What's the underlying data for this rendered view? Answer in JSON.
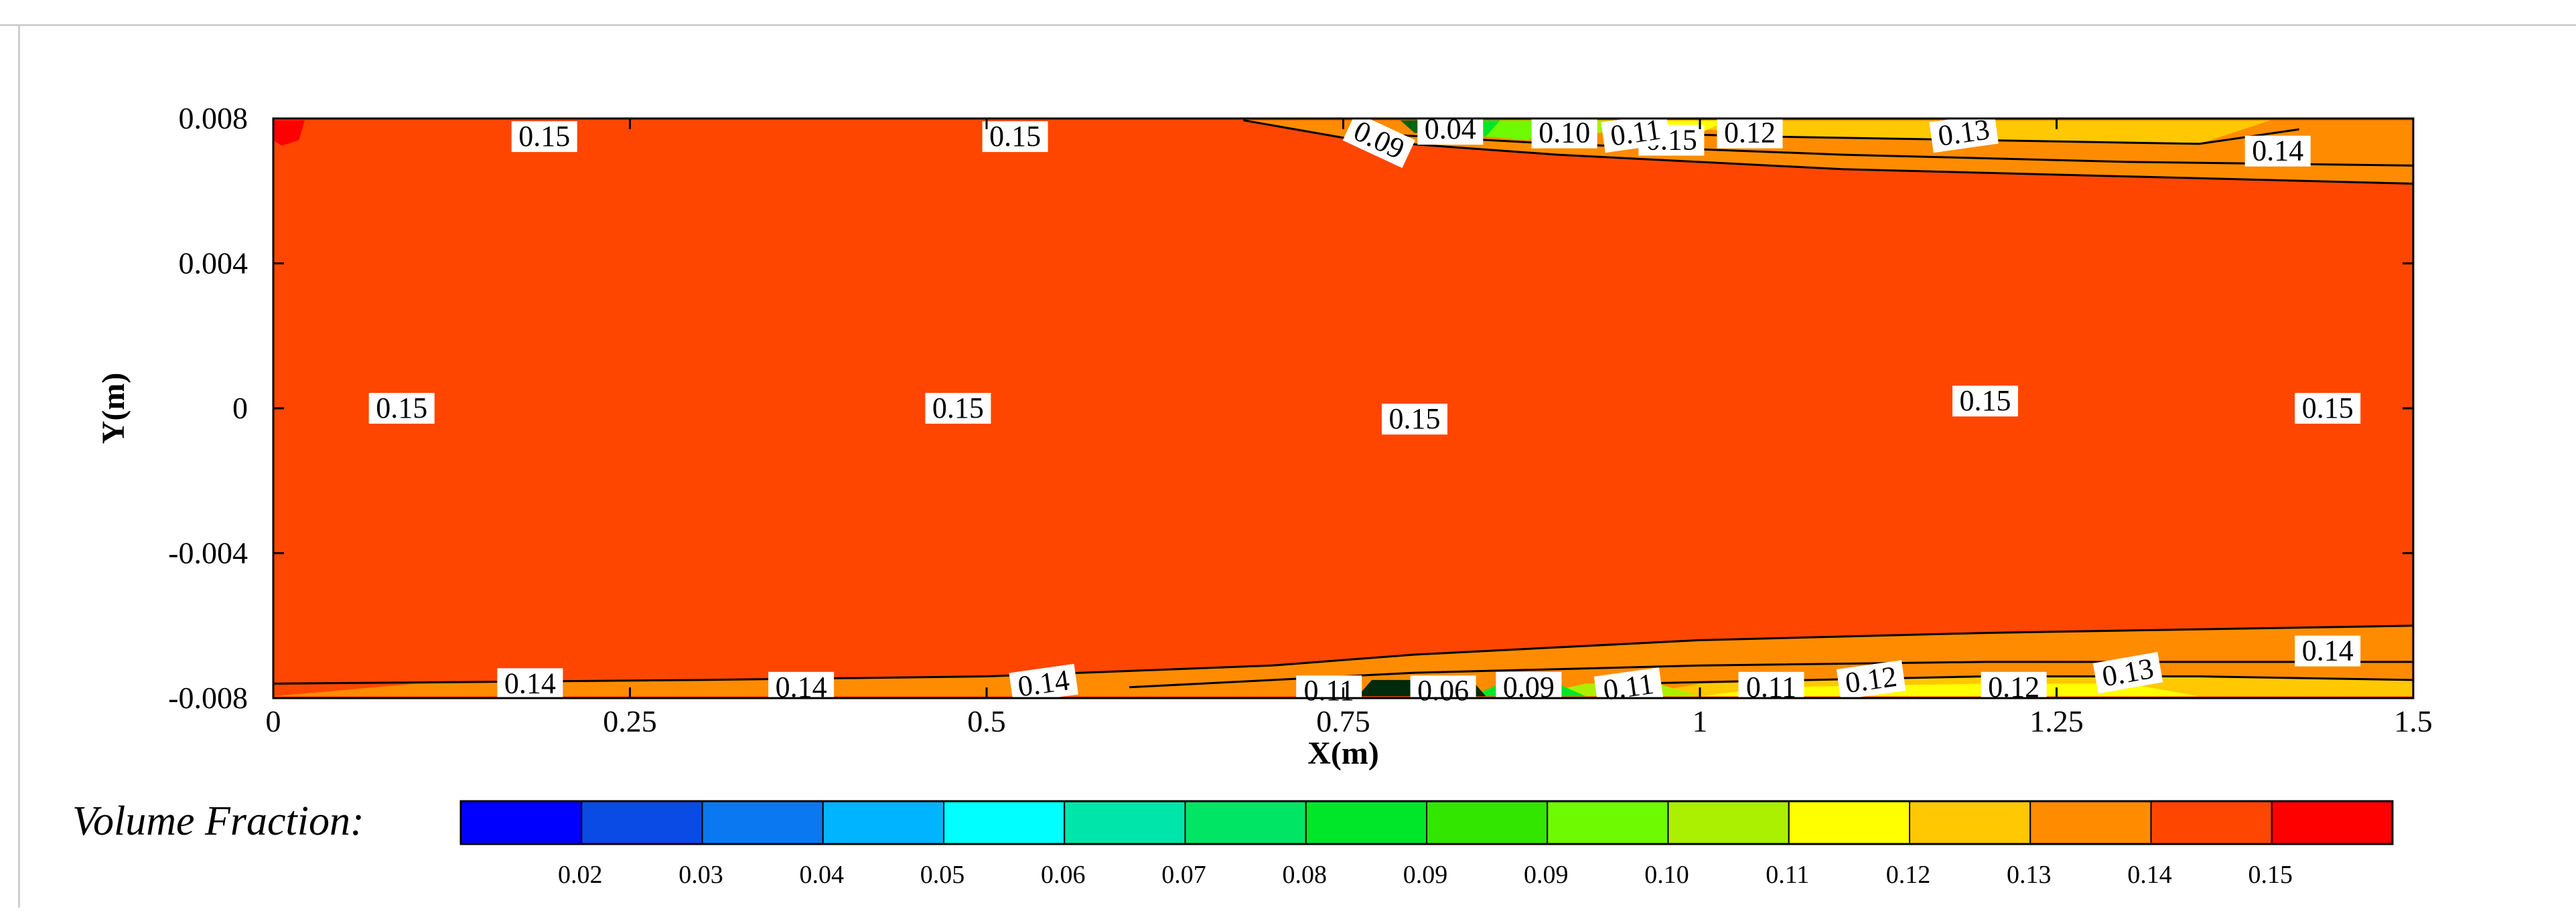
{
  "chart_data": {
    "type": "heatmap",
    "xlabel": "X(m)",
    "ylabel": "Y(m)",
    "xlim": [
      0,
      1.5
    ],
    "ylim": [
      -0.008,
      0.008
    ],
    "x_ticks": [
      {
        "value": 0,
        "label": "0"
      },
      {
        "value": 0.25,
        "label": "0.25"
      },
      {
        "value": 0.5,
        "label": "0.5"
      },
      {
        "value": 0.75,
        "label": "0.75"
      },
      {
        "value": 1,
        "label": "1"
      },
      {
        "value": 1.25,
        "label": "1.25"
      },
      {
        "value": 1.5,
        "label": "1.5"
      }
    ],
    "y_ticks": [
      {
        "value": 0.008,
        "label": "0.008"
      },
      {
        "value": 0.004,
        "label": "0.004"
      },
      {
        "value": 0,
        "label": "0"
      },
      {
        "value": -0.004,
        "label": "-0.004"
      },
      {
        "value": -0.008,
        "label": "-0.008"
      }
    ],
    "colorbar": {
      "title": "Volume Fraction:",
      "colors": [
        "#0000ff",
        "#0a4be6",
        "#0a78f0",
        "#00b4ff",
        "#00ffff",
        "#00e6aa",
        "#00e664",
        "#00e628",
        "#32e600",
        "#6efa00",
        "#aaf000",
        "#ffff00",
        "#ffc800",
        "#ff8c00",
        "#ff4600",
        "#ff0000"
      ],
      "labels": [
        "0.02",
        "0.03",
        "0.04",
        "0.05",
        "0.06",
        "0.07",
        "0.08",
        "0.09",
        "0.09",
        "0.10",
        "0.11",
        "0.12",
        "0.13",
        "0.14",
        "0.15"
      ]
    },
    "regions": [
      {
        "fill": "#ff4600",
        "value": 0.15,
        "polygon": [
          [
            0,
            -0.008
          ],
          [
            1.5,
            -0.008
          ],
          [
            1.5,
            0.008
          ],
          [
            0,
            0.008
          ]
        ]
      },
      {
        "fill": "#ff8c00",
        "value": 0.14,
        "polygon": [
          [
            0.68,
            0.00795
          ],
          [
            0.76,
            0.0074
          ],
          [
            0.9,
            0.007
          ],
          [
            1.1,
            0.0066
          ],
          [
            1.3,
            0.0064
          ],
          [
            1.5,
            0.0062
          ],
          [
            1.5,
            0.00795
          ]
        ]
      },
      {
        "fill": "#ffc800",
        "value": 0.13,
        "polygon": [
          [
            0.95,
            0.00795
          ],
          [
            1.05,
            0.0075
          ],
          [
            1.2,
            0.0074
          ],
          [
            1.35,
            0.0073
          ],
          [
            1.4,
            0.00795
          ]
        ]
      },
      {
        "fill": "#ffff00",
        "value": 0.12,
        "polygon": [
          [
            0.9,
            0.00795
          ],
          [
            0.95,
            0.0076
          ],
          [
            1.0,
            0.0076
          ],
          [
            1.02,
            0.00795
          ]
        ]
      },
      {
        "fill": "#aaf000",
        "value": 0.11,
        "polygon": [
          [
            0.86,
            0.00795
          ],
          [
            0.9,
            0.0075
          ],
          [
            0.93,
            0.0076
          ],
          [
            0.95,
            0.00795
          ]
        ]
      },
      {
        "fill": "#6efa00",
        "value": 0.1,
        "polygon": [
          [
            0.84,
            0.00795
          ],
          [
            0.85,
            0.0075
          ],
          [
            0.88,
            0.0074
          ],
          [
            0.9,
            0.00795
          ]
        ]
      },
      {
        "fill": "#00e628",
        "value": 0.09,
        "polygon": [
          [
            0.8,
            0.00795
          ],
          [
            0.82,
            0.0076
          ],
          [
            0.85,
            0.0075
          ],
          [
            0.86,
            0.00795
          ]
        ]
      },
      {
        "fill": "#006414",
        "value": 0.04,
        "polygon": [
          [
            0.79,
            0.00795
          ],
          [
            0.8,
            0.0076
          ],
          [
            0.83,
            0.0076
          ],
          [
            0.84,
            0.00795
          ]
        ]
      },
      {
        "fill": "#ff0000",
        "value": 0.15,
        "polygon": [
          [
            0,
            0.0074
          ],
          [
            0.006,
            0.00725
          ],
          [
            0.018,
            0.0074
          ],
          [
            0.022,
            0.00795
          ],
          [
            0,
            0.00795
          ]
        ]
      },
      {
        "fill": "#ff8c00",
        "value": 0.14,
        "polygon": [
          [
            0,
            -0.00795
          ],
          [
            0.1,
            -0.0076
          ],
          [
            0.3,
            -0.0075
          ],
          [
            0.5,
            -0.0074
          ],
          [
            0.7,
            -0.0071
          ],
          [
            0.8,
            -0.0068
          ],
          [
            1.0,
            -0.0064
          ],
          [
            1.2,
            -0.0062
          ],
          [
            1.5,
            -0.006
          ],
          [
            1.5,
            -0.00795
          ]
        ]
      },
      {
        "fill": "#ffc800",
        "value": 0.13,
        "polygon": [
          [
            0.95,
            -0.00795
          ],
          [
            1.0,
            -0.0076
          ],
          [
            1.2,
            -0.0074
          ],
          [
            1.35,
            -0.0074
          ],
          [
            1.5,
            -0.0075
          ],
          [
            1.5,
            -0.00795
          ]
        ]
      },
      {
        "fill": "#ffff00",
        "value": 0.12,
        "polygon": [
          [
            1.0,
            -0.00795
          ],
          [
            1.05,
            -0.0077
          ],
          [
            1.2,
            -0.0076
          ],
          [
            1.3,
            -0.0076
          ],
          [
            1.35,
            -0.00795
          ]
        ]
      },
      {
        "fill": "#aaf000",
        "value": 0.11,
        "polygon": [
          [
            0.88,
            -0.00795
          ],
          [
            0.92,
            -0.0076
          ],
          [
            0.97,
            -0.0076
          ],
          [
            1.0,
            -0.00795
          ]
        ]
      },
      {
        "fill": "#00e628",
        "value": 0.09,
        "polygon": [
          [
            0.84,
            -0.00795
          ],
          [
            0.86,
            -0.0076
          ],
          [
            0.9,
            -0.0076
          ],
          [
            0.92,
            -0.00795
          ]
        ]
      },
      {
        "fill": "#002a0a",
        "value": 0.06,
        "polygon": [
          [
            0.76,
            -0.00795
          ],
          [
            0.77,
            -0.0075
          ],
          [
            0.84,
            -0.0075
          ],
          [
            0.85,
            -0.00795
          ]
        ]
      }
    ],
    "contour_lines": [
      [
        [
          0.68,
          0.00795
        ],
        [
          0.76,
          0.0074
        ],
        [
          0.9,
          0.007
        ],
        [
          1.1,
          0.0066
        ],
        [
          1.3,
          0.0064
        ],
        [
          1.5,
          0.0062
        ]
      ],
      [
        [
          0.76,
          0.0076
        ],
        [
          0.9,
          0.0073
        ],
        [
          1.1,
          0.007
        ],
        [
          1.3,
          0.0068
        ],
        [
          1.5,
          0.0067
        ]
      ],
      [
        [
          0.95,
          0.0076
        ],
        [
          1.05,
          0.0075
        ],
        [
          1.2,
          0.0074
        ],
        [
          1.35,
          0.0073
        ],
        [
          1.42,
          0.0077
        ]
      ],
      [
        [
          0,
          -0.0076
        ],
        [
          0.3,
          -0.0075
        ],
        [
          0.5,
          -0.0074
        ],
        [
          0.7,
          -0.0071
        ],
        [
          0.8,
          -0.0068
        ],
        [
          1.0,
          -0.0064
        ],
        [
          1.2,
          -0.0062
        ],
        [
          1.5,
          -0.006
        ]
      ],
      [
        [
          0.6,
          -0.0077
        ],
        [
          0.8,
          -0.0073
        ],
        [
          1.0,
          -0.0071
        ],
        [
          1.2,
          -0.007
        ],
        [
          1.5,
          -0.007
        ]
      ],
      [
        [
          0.95,
          -0.0076
        ],
        [
          1.2,
          -0.0074
        ],
        [
          1.35,
          -0.0074
        ],
        [
          1.5,
          -0.0075
        ]
      ]
    ],
    "annotations": [
      {
        "x": 0.19,
        "y": 0.0075,
        "text": "0.15",
        "rotate": 0
      },
      {
        "x": 0.52,
        "y": 0.0075,
        "text": "0.15",
        "rotate": 0
      },
      {
        "x": 0.98,
        "y": 0.0074,
        "text": "0.15",
        "rotate": 0
      },
      {
        "x": 1.55,
        "y": 0.0074,
        "text": "0.09",
        "rotate": 25
      },
      {
        "x": 1.65,
        "y": 0.0077,
        "text": "0.04",
        "rotate": 0
      },
      {
        "x": 1.81,
        "y": 0.0076,
        "text": "0.10",
        "rotate": 0
      },
      {
        "x": 1.91,
        "y": 0.0076,
        "text": "0.11",
        "rotate": -8
      },
      {
        "x": 2.07,
        "y": 0.0076,
        "text": "0.12",
        "rotate": 0
      },
      {
        "x": 2.37,
        "y": 0.0076,
        "text": "0.13",
        "rotate": -8
      },
      {
        "x": 2.81,
        "y": 0.0071,
        "text": "0.14",
        "rotate": 0
      },
      {
        "x": 0.09,
        "y": 0.0,
        "text": "0.15",
        "rotate": 0
      },
      {
        "x": 0.48,
        "y": 0.0,
        "text": "0.15",
        "rotate": 0
      },
      {
        "x": 0.8,
        "y": -0.0003,
        "text": "0.15",
        "rotate": 0
      },
      {
        "x": 1.2,
        "y": 0.0002,
        "text": "0.15",
        "rotate": 0
      },
      {
        "x": 1.44,
        "y": 0.0,
        "text": "0.15",
        "rotate": 0
      },
      {
        "x": 0.18,
        "y": -0.0076,
        "text": "0.14",
        "rotate": 0
      },
      {
        "x": 0.37,
        "y": -0.0077,
        "text": "0.14",
        "rotate": 0
      },
      {
        "x": 0.54,
        "y": -0.0076,
        "text": "0.14",
        "rotate": -8
      },
      {
        "x": 0.74,
        "y": -0.0078,
        "text": "0.11",
        "rotate": 0
      },
      {
        "x": 0.82,
        "y": -0.0078,
        "text": "0.06",
        "rotate": 0
      },
      {
        "x": 0.88,
        "y": -0.0077,
        "text": "0.09",
        "rotate": 0
      },
      {
        "x": 0.95,
        "y": -0.0077,
        "text": "0.11",
        "rotate": -8
      },
      {
        "x": 1.05,
        "y": -0.0077,
        "text": "0.11",
        "rotate": 0
      },
      {
        "x": 1.12,
        "y": -0.0075,
        "text": "0.12",
        "rotate": -8
      },
      {
        "x": 1.22,
        "y": -0.0077,
        "text": "0.12",
        "rotate": 0
      },
      {
        "x": 1.3,
        "y": -0.0073,
        "text": "0.13",
        "rotate": -10
      },
      {
        "x": 1.44,
        "y": -0.0067,
        "text": "0.14",
        "rotate": 0
      }
    ]
  }
}
